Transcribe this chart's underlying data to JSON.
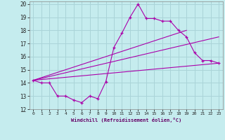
{
  "bg_color": "#c5ecee",
  "grid_color": "#aad4d8",
  "line_color": "#aa00aa",
  "xlim": [
    -0.5,
    23.5
  ],
  "ylim": [
    12,
    20.2
  ],
  "yticks": [
    12,
    13,
    14,
    15,
    16,
    17,
    18,
    19,
    20
  ],
  "xticks": [
    0,
    1,
    2,
    3,
    4,
    5,
    6,
    7,
    8,
    9,
    10,
    11,
    12,
    13,
    14,
    15,
    16,
    17,
    18,
    19,
    20,
    21,
    22,
    23
  ],
  "main_series_x": [
    0,
    1,
    2,
    3,
    4,
    5,
    6,
    7,
    8,
    9,
    10,
    11,
    12,
    13,
    14,
    15,
    16,
    17,
    18,
    19,
    20,
    21,
    22,
    23
  ],
  "main_series_y": [
    14.2,
    14.0,
    14.0,
    13.0,
    13.0,
    12.7,
    12.5,
    13.0,
    12.8,
    14.1,
    16.7,
    17.8,
    19.0,
    20.0,
    18.9,
    18.9,
    18.7,
    18.7,
    18.0,
    17.5,
    16.3,
    15.7,
    15.7,
    15.5
  ],
  "line2_x": [
    0,
    19
  ],
  "line2_y": [
    14.2,
    18.0
  ],
  "line3_x": [
    0,
    23
  ],
  "line3_y": [
    14.2,
    17.5
  ],
  "line4_x": [
    0,
    23
  ],
  "line4_y": [
    14.2,
    15.5
  ],
  "xlabel": "Windchill (Refroidissement éolien,°C)",
  "xlabel_color": "#660066"
}
